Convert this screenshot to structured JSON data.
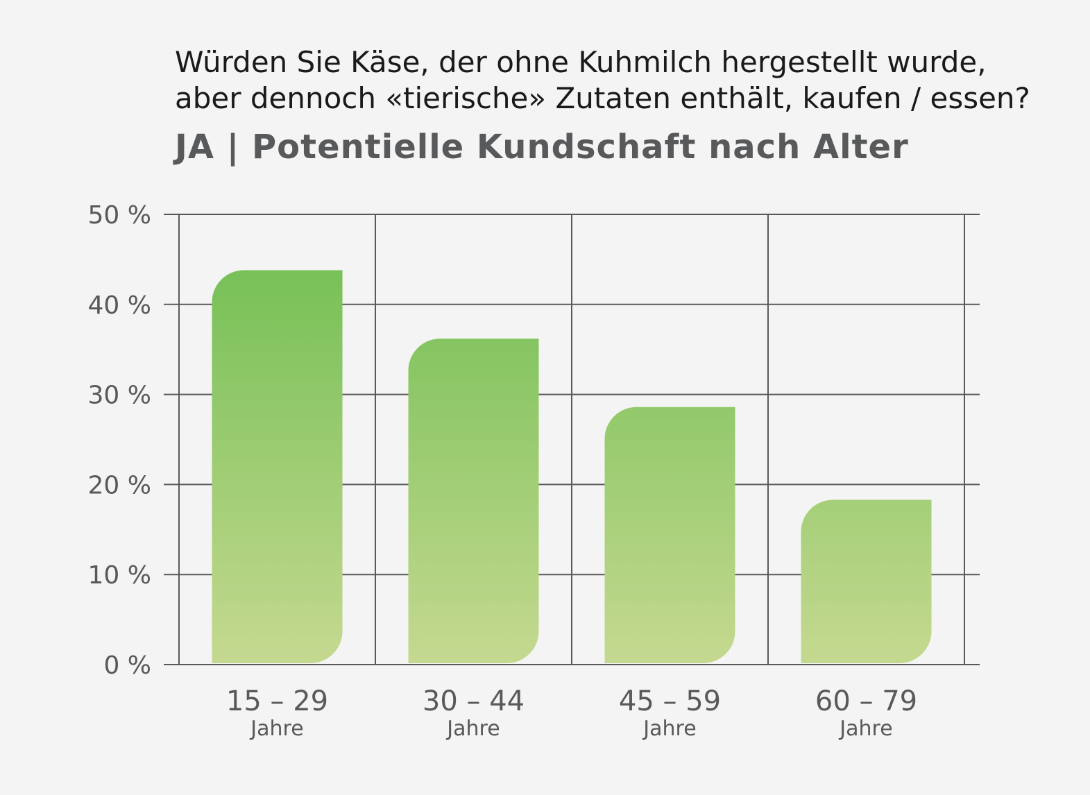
{
  "title_lines": [
    "Würden Sie Käse, der ohne Kuhmilch hergestellt wurde,",
    "aber dennoch «tierische» Zutaten enthält, kaufen / essen?"
  ],
  "subtitle": "JA | Potentielle Kundschaft nach Alter",
  "colors": {
    "bar_top": "#6cbd4f",
    "bar_bottom": "#c5d990",
    "grid": "#58595b",
    "background": "#f4f4f4"
  },
  "chart_data": {
    "type": "bar",
    "categories": [
      "15 – 29",
      "30 – 44",
      "45 – 59",
      "60 – 79"
    ],
    "category_sublabels": [
      "Jahre",
      "Jahre",
      "Jahre",
      "Jahre"
    ],
    "values": [
      43.8,
      36.2,
      28.6,
      18.3
    ],
    "unit": "%",
    "ylim": [
      0,
      50
    ],
    "yticks": [
      0,
      10,
      20,
      30,
      40,
      50
    ],
    "ytick_labels": [
      "0 %",
      "10 %",
      "20 %",
      "30 %",
      "40 %",
      "50 %"
    ],
    "grid": true
  }
}
